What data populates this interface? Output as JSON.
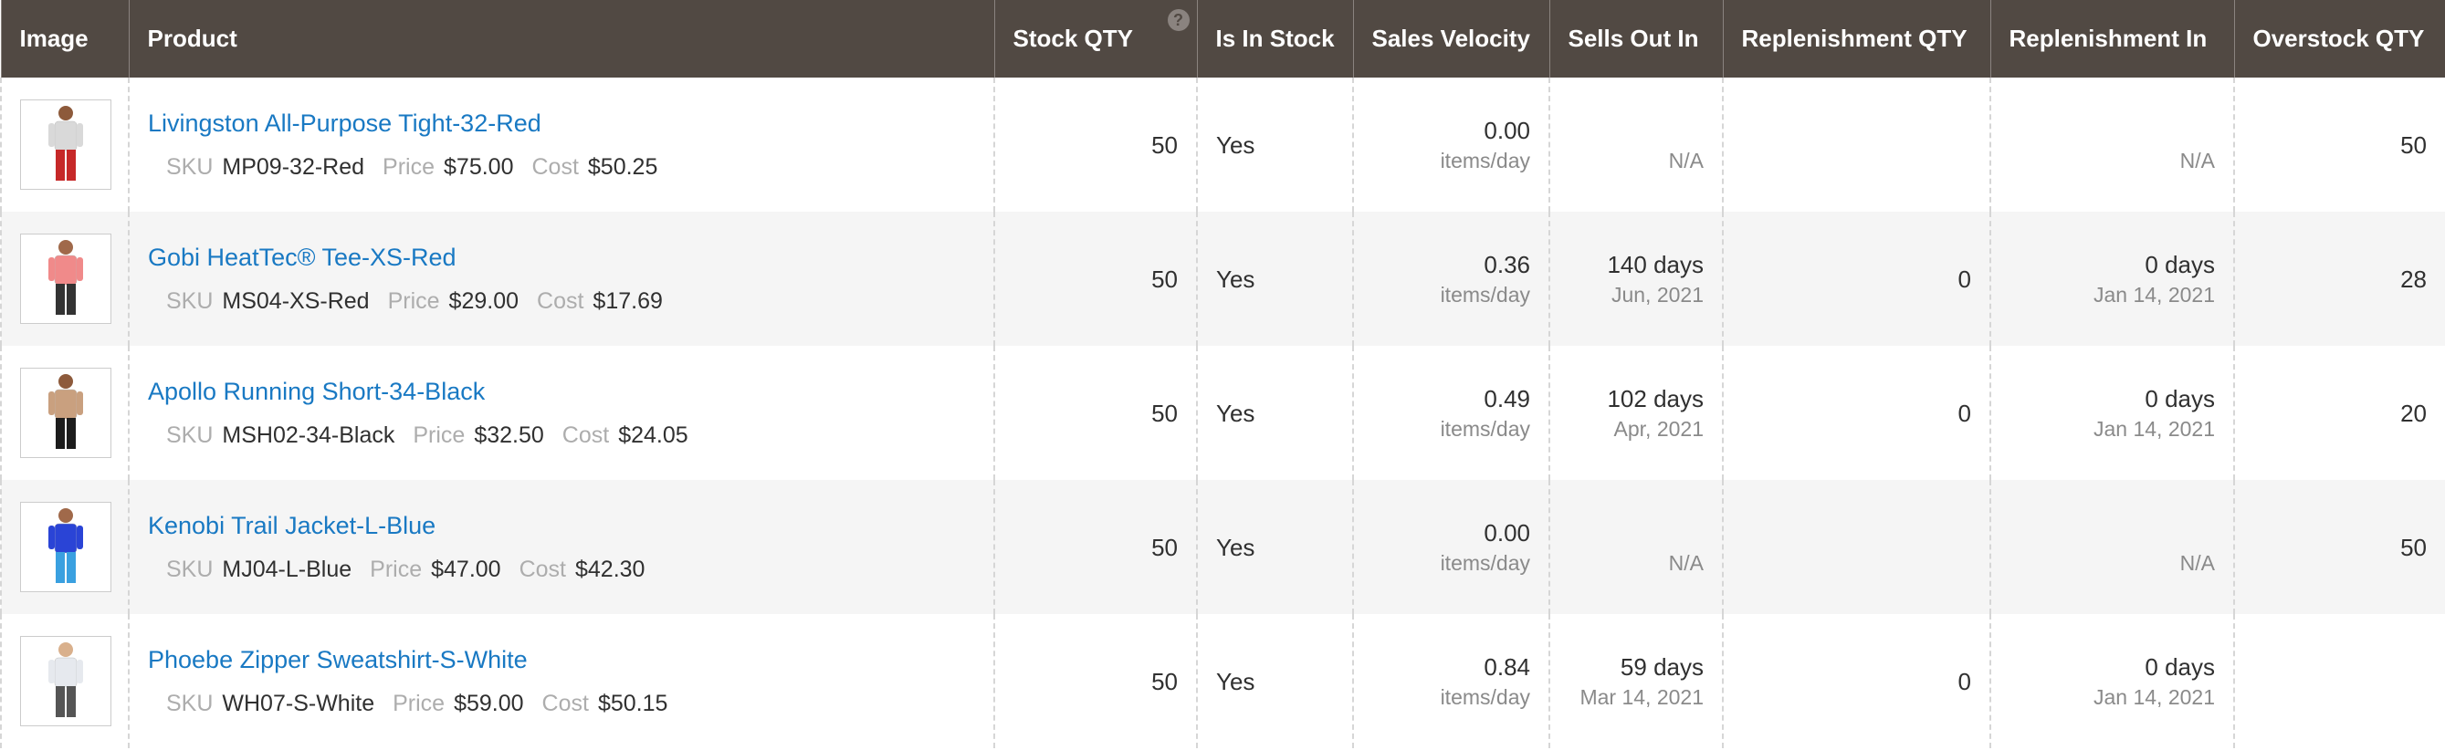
{
  "header": {
    "columns": [
      "Image",
      "Product",
      "Stock QTY",
      "Is In Stock",
      "Sales Velocity",
      "Sells Out In",
      "Replenishment QTY",
      "Replenishment In",
      "Overstock QTY"
    ],
    "stock_qty_hint": "?"
  },
  "labels": {
    "sku": "SKU",
    "price": "Price",
    "cost": "Cost"
  },
  "rows": [
    {
      "name": "Livingston All-Purpose Tight-32-Red",
      "sku": "MP09-32-Red",
      "price": "$75.00",
      "cost": "$50.25",
      "stock_qty": 50,
      "in_stock": "Yes",
      "velocity": "0.00",
      "velocity_unit": "items/day",
      "sells_out": {
        "sub": "N/A"
      },
      "replenishment_qty": null,
      "replenishment_in": {
        "sub": "N/A"
      },
      "overstock": 50
    },
    {
      "name": "Gobi HeatTec® Tee-XS-Red",
      "sku": "MS04-XS-Red",
      "price": "$29.00",
      "cost": "$17.69",
      "stock_qty": 50,
      "in_stock": "Yes",
      "velocity": "0.36",
      "velocity_unit": "items/day",
      "sells_out": {
        "main": "140 days",
        "sub": "Jun, 2021"
      },
      "replenishment_qty": 0,
      "replenishment_in": {
        "main": "0 days",
        "sub": "Jan 14, 2021"
      },
      "overstock": 28
    },
    {
      "name": "Apollo Running Short-34-Black",
      "sku": "MSH02-34-Black",
      "price": "$32.50",
      "cost": "$24.05",
      "stock_qty": 50,
      "in_stock": "Yes",
      "velocity": "0.49",
      "velocity_unit": "items/day",
      "sells_out": {
        "main": "102 days",
        "sub": "Apr, 2021"
      },
      "replenishment_qty": 0,
      "replenishment_in": {
        "main": "0 days",
        "sub": "Jan 14, 2021"
      },
      "overstock": 20
    },
    {
      "name": "Kenobi Trail Jacket-L-Blue",
      "sku": "MJ04-L-Blue",
      "price": "$47.00",
      "cost": "$42.30",
      "stock_qty": 50,
      "in_stock": "Yes",
      "velocity": "0.00",
      "velocity_unit": "items/day",
      "sells_out": {
        "sub": "N/A"
      },
      "replenishment_qty": null,
      "replenishment_in": {
        "sub": "N/A"
      },
      "overstock": 50
    },
    {
      "name": "Phoebe Zipper Sweatshirt-S-White",
      "sku": "WH07-S-White",
      "price": "$59.00",
      "cost": "$50.15",
      "stock_qty": 50,
      "in_stock": "Yes",
      "velocity": "0.84",
      "velocity_unit": "items/day",
      "sells_out": {
        "main": "59 days",
        "sub": "Mar 14, 2021"
      },
      "replenishment_qty": 0,
      "replenishment_in": {
        "main": "0 days",
        "sub": "Jan 14, 2021"
      },
      "overstock": null
    }
  ]
}
